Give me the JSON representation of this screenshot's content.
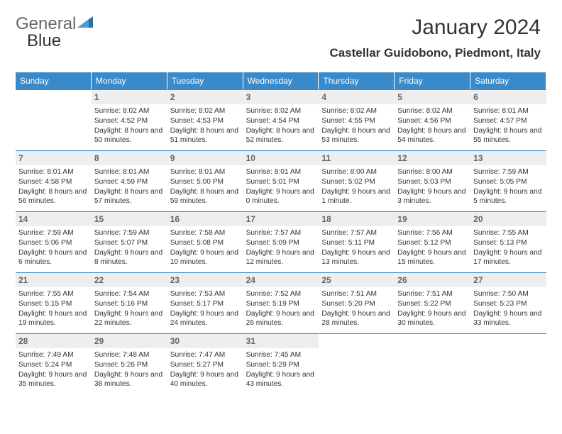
{
  "logo": {
    "part1": "General",
    "part2": "Blue"
  },
  "title": "January 2024",
  "location": "Castellar Guidobono, Piedmont, Italy",
  "header_bg": "#3a8ac9",
  "daynum_bg": "#eeeeee",
  "border_color": "#3a8ac9",
  "weekdays": [
    "Sunday",
    "Monday",
    "Tuesday",
    "Wednesday",
    "Thursday",
    "Friday",
    "Saturday"
  ],
  "start_offset": 1,
  "days": [
    {
      "n": 1,
      "sunrise": "8:02 AM",
      "sunset": "4:52 PM",
      "daylight": "8 hours and 50 minutes."
    },
    {
      "n": 2,
      "sunrise": "8:02 AM",
      "sunset": "4:53 PM",
      "daylight": "8 hours and 51 minutes."
    },
    {
      "n": 3,
      "sunrise": "8:02 AM",
      "sunset": "4:54 PM",
      "daylight": "8 hours and 52 minutes."
    },
    {
      "n": 4,
      "sunrise": "8:02 AM",
      "sunset": "4:55 PM",
      "daylight": "8 hours and 53 minutes."
    },
    {
      "n": 5,
      "sunrise": "8:02 AM",
      "sunset": "4:56 PM",
      "daylight": "8 hours and 54 minutes."
    },
    {
      "n": 6,
      "sunrise": "8:01 AM",
      "sunset": "4:57 PM",
      "daylight": "8 hours and 55 minutes."
    },
    {
      "n": 7,
      "sunrise": "8:01 AM",
      "sunset": "4:58 PM",
      "daylight": "8 hours and 56 minutes."
    },
    {
      "n": 8,
      "sunrise": "8:01 AM",
      "sunset": "4:59 PM",
      "daylight": "8 hours and 57 minutes."
    },
    {
      "n": 9,
      "sunrise": "8:01 AM",
      "sunset": "5:00 PM",
      "daylight": "8 hours and 59 minutes."
    },
    {
      "n": 10,
      "sunrise": "8:01 AM",
      "sunset": "5:01 PM",
      "daylight": "9 hours and 0 minutes."
    },
    {
      "n": 11,
      "sunrise": "8:00 AM",
      "sunset": "5:02 PM",
      "daylight": "9 hours and 1 minute."
    },
    {
      "n": 12,
      "sunrise": "8:00 AM",
      "sunset": "5:03 PM",
      "daylight": "9 hours and 3 minutes."
    },
    {
      "n": 13,
      "sunrise": "7:59 AM",
      "sunset": "5:05 PM",
      "daylight": "9 hours and 5 minutes."
    },
    {
      "n": 14,
      "sunrise": "7:59 AM",
      "sunset": "5:06 PM",
      "daylight": "9 hours and 6 minutes."
    },
    {
      "n": 15,
      "sunrise": "7:59 AM",
      "sunset": "5:07 PM",
      "daylight": "9 hours and 8 minutes."
    },
    {
      "n": 16,
      "sunrise": "7:58 AM",
      "sunset": "5:08 PM",
      "daylight": "9 hours and 10 minutes."
    },
    {
      "n": 17,
      "sunrise": "7:57 AM",
      "sunset": "5:09 PM",
      "daylight": "9 hours and 12 minutes."
    },
    {
      "n": 18,
      "sunrise": "7:57 AM",
      "sunset": "5:11 PM",
      "daylight": "9 hours and 13 minutes."
    },
    {
      "n": 19,
      "sunrise": "7:56 AM",
      "sunset": "5:12 PM",
      "daylight": "9 hours and 15 minutes."
    },
    {
      "n": 20,
      "sunrise": "7:55 AM",
      "sunset": "5:13 PM",
      "daylight": "9 hours and 17 minutes."
    },
    {
      "n": 21,
      "sunrise": "7:55 AM",
      "sunset": "5:15 PM",
      "daylight": "9 hours and 19 minutes."
    },
    {
      "n": 22,
      "sunrise": "7:54 AM",
      "sunset": "5:16 PM",
      "daylight": "9 hours and 22 minutes."
    },
    {
      "n": 23,
      "sunrise": "7:53 AM",
      "sunset": "5:17 PM",
      "daylight": "9 hours and 24 minutes."
    },
    {
      "n": 24,
      "sunrise": "7:52 AM",
      "sunset": "5:19 PM",
      "daylight": "9 hours and 26 minutes."
    },
    {
      "n": 25,
      "sunrise": "7:51 AM",
      "sunset": "5:20 PM",
      "daylight": "9 hours and 28 minutes."
    },
    {
      "n": 26,
      "sunrise": "7:51 AM",
      "sunset": "5:22 PM",
      "daylight": "9 hours and 30 minutes."
    },
    {
      "n": 27,
      "sunrise": "7:50 AM",
      "sunset": "5:23 PM",
      "daylight": "9 hours and 33 minutes."
    },
    {
      "n": 28,
      "sunrise": "7:49 AM",
      "sunset": "5:24 PM",
      "daylight": "9 hours and 35 minutes."
    },
    {
      "n": 29,
      "sunrise": "7:48 AM",
      "sunset": "5:26 PM",
      "daylight": "9 hours and 38 minutes."
    },
    {
      "n": 30,
      "sunrise": "7:47 AM",
      "sunset": "5:27 PM",
      "daylight": "9 hours and 40 minutes."
    },
    {
      "n": 31,
      "sunrise": "7:45 AM",
      "sunset": "5:29 PM",
      "daylight": "9 hours and 43 minutes."
    }
  ],
  "labels": {
    "sunrise": "Sunrise:",
    "sunset": "Sunset:",
    "daylight": "Daylight:"
  }
}
